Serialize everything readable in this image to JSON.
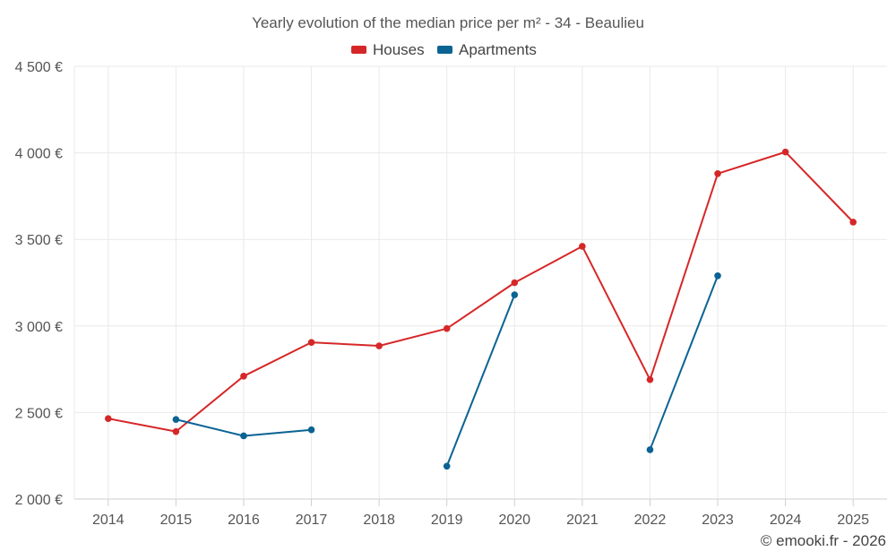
{
  "chart_data": {
    "type": "line",
    "title": "Yearly evolution of the median price per m² - 34 - Beaulieu",
    "categories": [
      "2014",
      "2015",
      "2016",
      "2017",
      "2018",
      "2019",
      "2020",
      "2021",
      "2022",
      "2023",
      "2024",
      "2025"
    ],
    "series": [
      {
        "name": "Houses",
        "color": "#d62728",
        "values": [
          2465,
          2390,
          2710,
          2905,
          2885,
          2985,
          3250,
          3460,
          2690,
          3880,
          4005,
          3600
        ]
      },
      {
        "name": "Apartments",
        "color": "#0b6394",
        "values": [
          null,
          2460,
          2365,
          2400,
          null,
          2190,
          3180,
          null,
          2285,
          3290,
          null,
          null
        ]
      }
    ],
    "ylim": [
      2000,
      4500
    ],
    "yticks": [
      2000,
      2500,
      3000,
      3500,
      4000,
      4500
    ],
    "ytick_labels": [
      "2 000 €",
      "2 500 €",
      "3 000 €",
      "3 500 €",
      "4 000 €",
      "4 500 €"
    ],
    "xlabel": "",
    "ylabel": "",
    "grid": true,
    "legend_position": "top-center"
  },
  "credit": "© emooki.fr - 2026"
}
